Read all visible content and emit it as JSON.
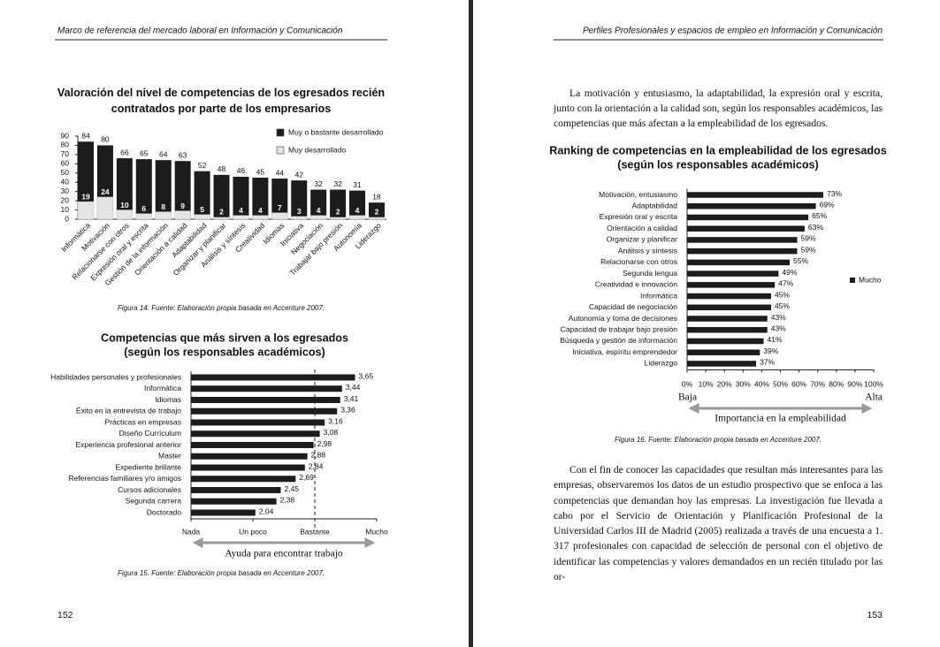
{
  "pages": [
    {
      "header": "Marco de referencia del mercado laboral en Información y Comunicación",
      "page_number": "152"
    },
    {
      "header": "Perfiles Profesionales y espacios de empleo en Información y Comunicación",
      "page_number": "153",
      "paragraphs": [
        "La motivación y entusiasmo, la adaptabilidad, la expresión oral y escrita, junto con la orientación a la calidad son, según los responsables académicos, las competencias que más afectan a la empleabilidad de los egresados.",
        "Con el fin de conocer las capacidades que resultan más interesantes para las empresas, observaremos los datos de un estudio prospectivo que se enfoca a las competencias que demandan hoy las empresas. La investigación fue llevada a cabo por el Servicio de Orientación y Planificación Profesional de la Universidad Carlos III de Madrid (2005) realizada a través de una encuesta a 1. 317 profesionales con capacidad de selección de personal con el objetivo de identificar las competencias y valores demandados en un recién titulado por las or-"
      ]
    }
  ],
  "chart_data": [
    {
      "type": "bar",
      "title": "Valoración del nivel de competencias de los egresados recién contratados por parte de los empresarios",
      "caption": "Figura 14. Fuente: Elaboración propia basada en Accenture 2007.",
      "categories": [
        "Informática",
        "Motivación",
        "Relacionarse con otros",
        "Expresión oral y escrita",
        "Gestión de la información",
        "Orientación a calidad",
        "Adaptabilidad",
        "Organizar y planificar",
        "Análisis y síntesis",
        "Creatividad",
        "Idiomas",
        "Iniciativa",
        "Negociación",
        "Trabajar bajo presión",
        "Autonomía",
        "Liderazgo"
      ],
      "series": [
        {
          "name": "Muy o bastante desarrollado",
          "color": "#1c1c1c",
          "values": [
            84,
            80,
            66,
            65,
            64,
            63,
            52,
            48,
            46,
            45,
            44,
            42,
            32,
            32,
            31,
            18
          ]
        },
        {
          "name": "Muy desarrollado",
          "color": "#e4e4e4",
          "values": [
            19,
            24,
            10,
            6,
            8,
            9,
            5,
            2,
            4,
            4,
            7,
            3,
            4,
            2,
            4,
            2
          ]
        }
      ],
      "ylim": [
        0,
        90
      ],
      "yticks": [
        0,
        10,
        20,
        30,
        40,
        50,
        60,
        70,
        80,
        90
      ],
      "legend": "upper right"
    },
    {
      "type": "barh",
      "title": "Competencias que más sirven a los egresados",
      "subtitle": "(según los responsables académicos)",
      "caption": "Figura 15. Fuente: Elaboración propia basada en Accenture 2007.",
      "x_label": "Ayuda para encontrar trabajo",
      "categories": [
        "Habilidades personales y profesionales",
        "Informática",
        "Idiomas",
        "Éxito en la entrevista de trabajo",
        "Prácticas en empresas",
        "Diseño Currículum",
        "Experiencia profesional anterior",
        "Master",
        "Expediente brillante",
        "Referencias familiares y/o amigos",
        "Cursos adicionales",
        "Segunda carrera",
        "Doctorado"
      ],
      "values": [
        3.65,
        3.44,
        3.41,
        3.36,
        3.16,
        3.08,
        2.98,
        2.88,
        2.84,
        2.69,
        2.45,
        2.38,
        2.04
      ],
      "value_labels": [
        "3,65",
        "3,44",
        "3,41",
        "3,36",
        "3,16",
        "3,08",
        "2,98",
        "2,88",
        "2,84",
        "2,69",
        "2,45",
        "2,38",
        "2,04"
      ],
      "color": "#1c1c1c",
      "xlim": [
        1,
        4
      ],
      "xticks": [
        {
          "value": 1,
          "label": "Nada"
        },
        {
          "value": 2,
          "label": "Un poco"
        },
        {
          "value": 3,
          "label": "Bastante"
        },
        {
          "value": 4,
          "label": "Mucho"
        }
      ],
      "reference_line": 3
    },
    {
      "type": "barh",
      "title": "Ranking de competencias en la empleabilidad de los egresados",
      "subtitle": "(según los responsables académicos)",
      "caption": "Figura 16. Fuente: Elaboración propia basada en Accenture 2007.",
      "x_label": "Importancia en la empleabilidad",
      "x_low_label": "Baja",
      "x_high_label": "Alta",
      "series_name": "Mucho",
      "legend": "right",
      "categories": [
        "Motivación, entusiasmo",
        "Adaptabilidad",
        "Expresión oral y escrita",
        "Orientación a calidad",
        "Organizar y planificar",
        "Análisis y síntesis",
        "Relacionarse con otros",
        "Segunda lengua",
        "Creatividad e innovación",
        "Informática",
        "Capacidad de negociación",
        "Autonomía y toma de decisiones",
        "Capacidad de trabajar bajo presión",
        "Búsqueda y gestión de información",
        "Iniciativa, espíritu emprendedor",
        "Liderazgo"
      ],
      "values": [
        73,
        69,
        65,
        63,
        59,
        59,
        55,
        49,
        47,
        45,
        45,
        43,
        43,
        41,
        39,
        37
      ],
      "value_labels": [
        "73%",
        "69%",
        "65%",
        "63%",
        "59%",
        "59%",
        "55%",
        "49%",
        "47%",
        "45%",
        "45%",
        "43%",
        "43%",
        "41%",
        "39%",
        "37%"
      ],
      "color": "#1c1c1c",
      "xlim": [
        0,
        100
      ],
      "xticks": [
        {
          "value": 0,
          "label": "0%"
        },
        {
          "value": 10,
          "label": "10%"
        },
        {
          "value": 20,
          "label": "20%"
        },
        {
          "value": 30,
          "label": "30%"
        },
        {
          "value": 40,
          "label": "40%"
        },
        {
          "value": 50,
          "label": "50%"
        },
        {
          "value": 60,
          "label": "60%"
        },
        {
          "value": 70,
          "label": "70%"
        },
        {
          "value": 80,
          "label": "80%"
        },
        {
          "value": 90,
          "label": "90%"
        },
        {
          "value": 100,
          "label": "100%"
        }
      ]
    }
  ]
}
